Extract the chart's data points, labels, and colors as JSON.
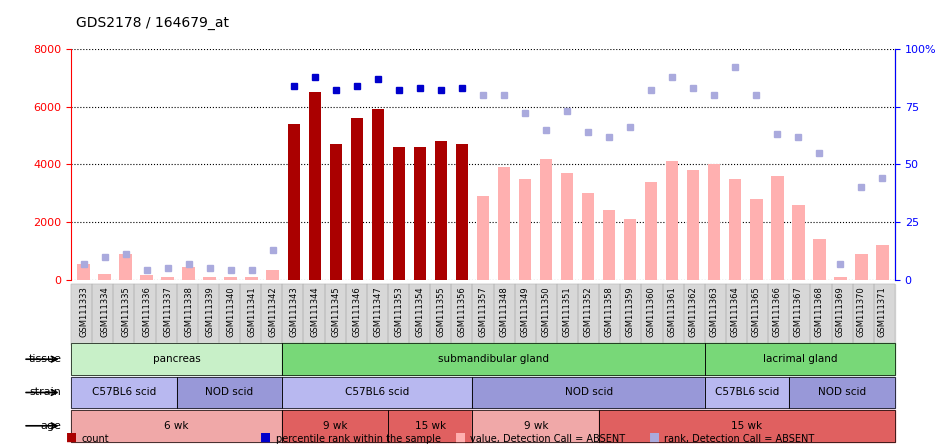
{
  "title": "GDS2178 / 164679_at",
  "samples": [
    "GSM111333",
    "GSM111334",
    "GSM111335",
    "GSM111336",
    "GSM111337",
    "GSM111338",
    "GSM111339",
    "GSM111340",
    "GSM111341",
    "GSM111342",
    "GSM111343",
    "GSM111344",
    "GSM111345",
    "GSM111346",
    "GSM111347",
    "GSM111353",
    "GSM111354",
    "GSM111355",
    "GSM111356",
    "GSM111357",
    "GSM111348",
    "GSM111349",
    "GSM111350",
    "GSM111351",
    "GSM111352",
    "GSM111358",
    "GSM111359",
    "GSM111360",
    "GSM111361",
    "GSM111362",
    "GSM111363",
    "GSM111364",
    "GSM111365",
    "GSM111366",
    "GSM111367",
    "GSM111368",
    "GSM111369",
    "GSM111370",
    "GSM111371"
  ],
  "values_present": [
    null,
    null,
    null,
    null,
    null,
    null,
    null,
    null,
    null,
    null,
    5400,
    6500,
    4700,
    5600,
    5900,
    4600,
    4600,
    4800,
    4700,
    null,
    null,
    null,
    null,
    null,
    null,
    null,
    null,
    null,
    null,
    null,
    null,
    null,
    null,
    null,
    null,
    null,
    null,
    null,
    null
  ],
  "values_absent": [
    550,
    200,
    900,
    150,
    100,
    430,
    100,
    80,
    110,
    350,
    null,
    null,
    null,
    null,
    null,
    null,
    null,
    null,
    null,
    2900,
    3900,
    3500,
    4200,
    3700,
    3000,
    2400,
    2100,
    3400,
    4100,
    3800,
    4000,
    3500,
    2800,
    3600,
    2600,
    1400,
    100,
    900,
    1200
  ],
  "rank_present": [
    null,
    null,
    null,
    null,
    null,
    null,
    null,
    null,
    null,
    null,
    84,
    88,
    82,
    84,
    87,
    82,
    83,
    82,
    83,
    null,
    null,
    null,
    null,
    null,
    null,
    null,
    null,
    null,
    null,
    null,
    null,
    null,
    null,
    null,
    null,
    null,
    null,
    null,
    null
  ],
  "rank_absent": [
    7,
    10,
    11,
    4,
    5,
    7,
    5,
    4,
    4,
    13,
    null,
    null,
    null,
    null,
    null,
    null,
    null,
    null,
    null,
    80,
    80,
    72,
    65,
    73,
    64,
    62,
    66,
    82,
    88,
    83,
    80,
    92,
    80,
    63,
    62,
    55,
    7,
    40,
    44
  ],
  "tissue_groups": [
    {
      "label": "pancreas",
      "start": 0,
      "end": 9,
      "color": "#c8f0c8"
    },
    {
      "label": "submandibular gland",
      "start": 10,
      "end": 29,
      "color": "#78d878"
    },
    {
      "label": "lacrimal gland",
      "start": 30,
      "end": 38,
      "color": "#78d878"
    }
  ],
  "strain_groups": [
    {
      "label": "C57BL6 scid",
      "start": 0,
      "end": 4,
      "color": "#b8b8f0"
    },
    {
      "label": "NOD scid",
      "start": 5,
      "end": 9,
      "color": "#9898d8"
    },
    {
      "label": "C57BL6 scid",
      "start": 10,
      "end": 18,
      "color": "#b8b8f0"
    },
    {
      "label": "NOD scid",
      "start": 19,
      "end": 29,
      "color": "#9898d8"
    },
    {
      "label": "C57BL6 scid",
      "start": 30,
      "end": 33,
      "color": "#b8b8f0"
    },
    {
      "label": "NOD scid",
      "start": 34,
      "end": 38,
      "color": "#9898d8"
    }
  ],
  "age_groups": [
    {
      "label": "6 wk",
      "start": 0,
      "end": 9,
      "color": "#f0a8a8"
    },
    {
      "label": "9 wk",
      "start": 10,
      "end": 14,
      "color": "#e06060"
    },
    {
      "label": "15 wk",
      "start": 15,
      "end": 18,
      "color": "#e06060"
    },
    {
      "label": "9 wk",
      "start": 19,
      "end": 24,
      "color": "#f0a8a8"
    },
    {
      "label": "15 wk",
      "start": 25,
      "end": 38,
      "color": "#e06060"
    }
  ],
  "ylim_left": [
    0,
    8000
  ],
  "ylim_right": [
    0,
    100
  ],
  "yticks_left": [
    0,
    2000,
    4000,
    6000,
    8000
  ],
  "yticks_right": [
    0,
    25,
    50,
    75,
    100
  ],
  "bar_color_present": "#aa0000",
  "bar_color_absent": "#ffb0b0",
  "dot_color_present": "#0000cc",
  "dot_color_absent": "#aaaadd"
}
